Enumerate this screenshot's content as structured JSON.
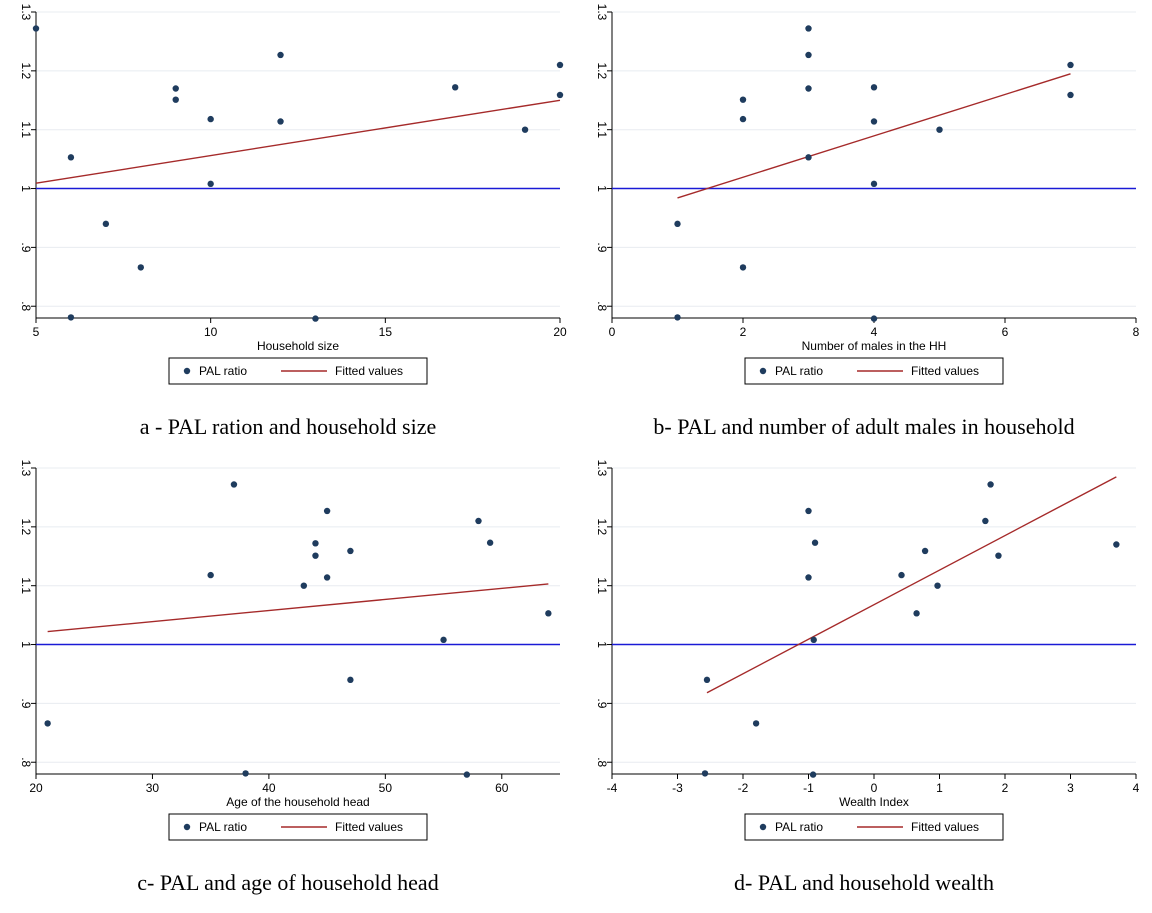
{
  "chart_data": [
    {
      "type": "scatter",
      "caption": "a - PAL ration and household size",
      "xlabel": "Household size",
      "ylabel": "",
      "xlim": [
        5,
        20
      ],
      "ylim": [
        0.78,
        1.3
      ],
      "xticks": [
        5,
        10,
        15,
        20
      ],
      "xtick_labels": [
        "5",
        "10",
        "15",
        "20"
      ],
      "yticks": [
        0.8,
        0.9,
        1.0,
        1.1,
        1.2,
        1.3
      ],
      "ytick_labels": [
        ".8",
        ".9",
        "1",
        "1.1",
        "1.2",
        "1.3"
      ],
      "grid": true,
      "reference_line": 1.0,
      "legend": [
        "PAL ratio",
        "Fitted values"
      ],
      "legend_placement": "bottom",
      "series": [
        {
          "name": "PAL ratio",
          "kind": "points",
          "x": [
            5,
            6,
            6,
            7,
            8,
            9,
            9,
            10,
            10,
            12,
            12,
            13,
            17,
            19,
            20,
            20
          ],
          "y": [
            1.272,
            1.053,
            0.781,
            0.94,
            0.866,
            1.17,
            1.151,
            1.118,
            1.008,
            1.227,
            1.114,
            0.779,
            1.172,
            1.1,
            1.21,
            1.159
          ]
        },
        {
          "name": "Fitted values",
          "kind": "line",
          "x": [
            5,
            20
          ],
          "y": [
            1.009,
            1.15
          ]
        }
      ],
      "colors": {
        "points": "#1f3c5e",
        "fit": "#a52a2a",
        "reference": "#1a1ad6",
        "grid": "#e8ecf0"
      }
    },
    {
      "type": "scatter",
      "caption": "b- PAL and number of adult males in household",
      "xlabel": "Number of males in the HH",
      "ylabel": "",
      "xlim": [
        0,
        8
      ],
      "ylim": [
        0.78,
        1.3
      ],
      "xticks": [
        0,
        2,
        4,
        6,
        8
      ],
      "xtick_labels": [
        "0",
        "2",
        "4",
        "6",
        "8"
      ],
      "yticks": [
        0.8,
        0.9,
        1.0,
        1.1,
        1.2,
        1.3
      ],
      "ytick_labels": [
        ".8",
        ".9",
        "1",
        "1.1",
        "1.2",
        "1.3"
      ],
      "grid": true,
      "reference_line": 1.0,
      "legend": [
        "PAL ratio",
        "Fitted values"
      ],
      "legend_placement": "bottom",
      "series": [
        {
          "name": "PAL ratio",
          "kind": "points",
          "x": [
            1,
            1,
            2,
            2,
            2,
            3,
            3,
            3,
            3,
            4,
            4,
            4,
            4,
            5,
            7,
            7
          ],
          "y": [
            0.94,
            0.781,
            1.151,
            1.118,
            0.866,
            1.272,
            1.227,
            1.17,
            1.053,
            1.172,
            1.114,
            1.008,
            0.779,
            1.1,
            1.21,
            1.159
          ]
        },
        {
          "name": "Fitted values",
          "kind": "line",
          "x": [
            1,
            7
          ],
          "y": [
            0.984,
            1.195
          ]
        }
      ],
      "colors": {
        "points": "#1f3c5e",
        "fit": "#a52a2a",
        "reference": "#1a1ad6",
        "grid": "#e8ecf0"
      }
    },
    {
      "type": "scatter",
      "caption": "c- PAL and age of household head",
      "xlabel": "Age of the household head",
      "ylabel": "",
      "xlim": [
        20,
        65
      ],
      "ylim": [
        0.78,
        1.3
      ],
      "xticks": [
        20,
        30,
        40,
        50,
        60
      ],
      "xtick_labels": [
        "20",
        "30",
        "40",
        "50",
        "60"
      ],
      "yticks": [
        0.8,
        0.9,
        1.0,
        1.1,
        1.2,
        1.3
      ],
      "ytick_labels": [
        ".8",
        ".9",
        "1",
        "1.1",
        "1.2",
        "1.3"
      ],
      "grid": true,
      "reference_line": 1.0,
      "legend": [
        "PAL ratio",
        "Fitted values"
      ],
      "legend_placement": "bottom",
      "series": [
        {
          "name": "PAL ratio",
          "kind": "points",
          "x": [
            21,
            35,
            37,
            38,
            43,
            44,
            44,
            45,
            45,
            47,
            47,
            55,
            57,
            58,
            59,
            64
          ],
          "y": [
            0.866,
            1.118,
            1.272,
            0.781,
            1.1,
            1.172,
            1.151,
            1.227,
            1.114,
            1.159,
            0.94,
            1.008,
            0.779,
            1.21,
            1.173,
            1.053
          ]
        },
        {
          "name": "Fitted values",
          "kind": "line",
          "x": [
            21,
            64
          ],
          "y": [
            1.022,
            1.103
          ]
        }
      ],
      "colors": {
        "points": "#1f3c5e",
        "fit": "#a52a2a",
        "reference": "#1a1ad6",
        "grid": "#e8ecf0"
      }
    },
    {
      "type": "scatter",
      "caption": "d- PAL and household wealth",
      "xlabel": "Wealth Index",
      "ylabel": "",
      "xlim": [
        -4,
        4
      ],
      "ylim": [
        0.78,
        1.3
      ],
      "xticks": [
        -4,
        -3,
        -2,
        -1,
        0,
        1,
        2,
        3,
        4
      ],
      "xtick_labels": [
        "-4",
        "-3",
        "-2",
        "-1",
        "0",
        "1",
        "2",
        "3",
        "4"
      ],
      "yticks": [
        0.8,
        0.9,
        1.0,
        1.1,
        1.2,
        1.3
      ],
      "ytick_labels": [
        ".8",
        ".9",
        "1",
        "1.1",
        "1.2",
        "1.3"
      ],
      "grid": true,
      "reference_line": 1.0,
      "legend": [
        "PAL ratio",
        "Fitted values"
      ],
      "legend_placement": "bottom",
      "series": [
        {
          "name": "PAL ratio",
          "kind": "points",
          "x": [
            -2.55,
            -2.58,
            -1.8,
            -1.0,
            -1.0,
            -0.9,
            -0.92,
            -0.93,
            0.42,
            0.65,
            0.78,
            0.97,
            1.7,
            1.78,
            1.9,
            3.7
          ],
          "y": [
            0.94,
            0.781,
            0.866,
            1.227,
            1.114,
            1.173,
            1.008,
            0.779,
            1.118,
            1.053,
            1.159,
            1.1,
            1.21,
            1.272,
            1.151,
            1.17
          ]
        },
        {
          "name": "Fitted values",
          "kind": "line",
          "x": [
            -2.55,
            3.7
          ],
          "y": [
            0.918,
            1.285
          ]
        }
      ],
      "colors": {
        "points": "#1f3c5e",
        "fit": "#a52a2a",
        "reference": "#1a1ad6",
        "grid": "#e8ecf0"
      }
    }
  ]
}
